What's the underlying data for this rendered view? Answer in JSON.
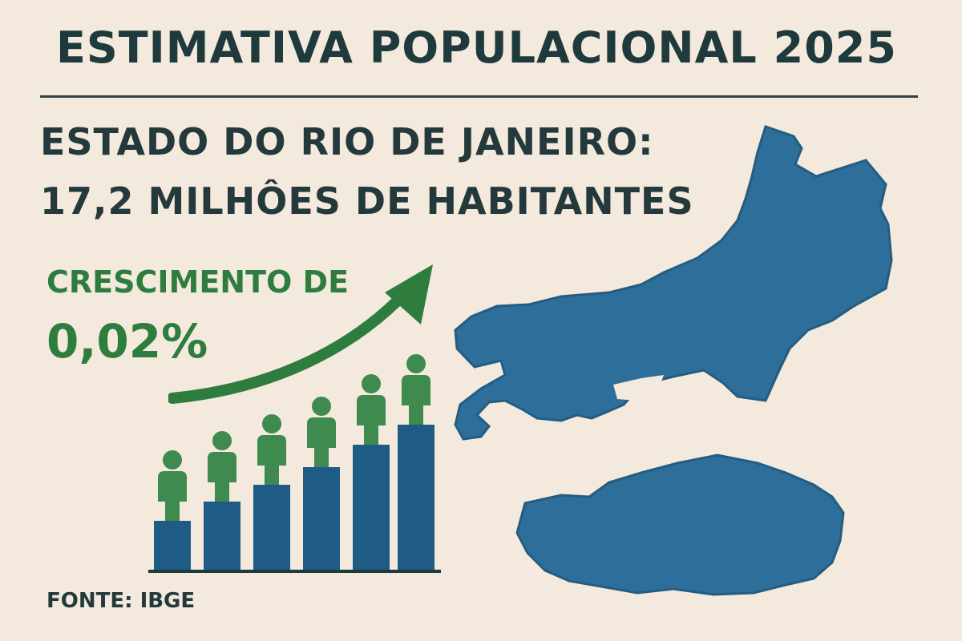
{
  "title": "ESTIMATIVA POPULACIONAL 2025",
  "headline": {
    "line1": "ESTADO DO RIO DE JANEIRO:",
    "line2": "17,2 MILHÔES DE HABITANTES"
  },
  "growth": {
    "label": "CRESCIMENTO DE",
    "value": "0,02%"
  },
  "source": "FONTE: IBGE",
  "colors": {
    "background": "#f3e9dc",
    "text_dark": "#24393c",
    "green": "#2e7d3e",
    "bar_blue": "#1f5c85",
    "map_blue": "#2d6f9a"
  },
  "icons": [
    "growth-arrow-icon",
    "person-icon",
    "state-map-icon"
  ]
}
